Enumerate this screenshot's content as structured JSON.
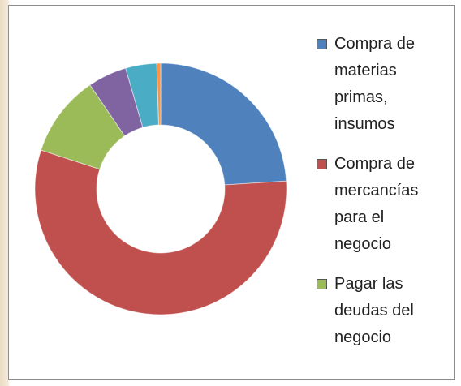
{
  "chart_data": {
    "type": "donut",
    "categories": [
      "Compra de materias primas, insumos",
      "Compra de mercancías para el negocio",
      "Pagar las deudas del negocio",
      null,
      null,
      null
    ],
    "values": [
      24,
      56,
      10.5,
      5,
      4,
      0.5
    ],
    "colors": [
      "#4f81bd",
      "#c0504d",
      "#9bbb59",
      "#8064a2",
      "#4bacc6",
      "#f79646"
    ],
    "legend": "right"
  }
}
